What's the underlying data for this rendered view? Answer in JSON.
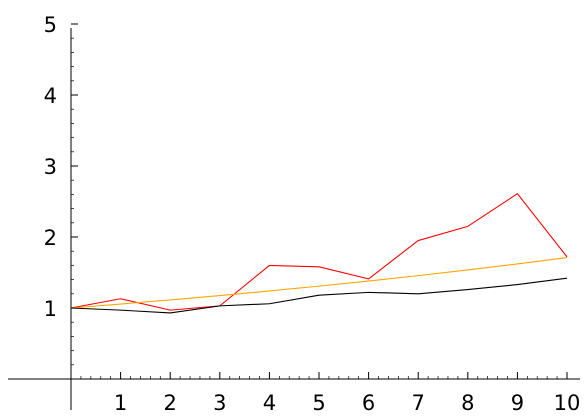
{
  "chart_data": {
    "type": "line",
    "title": "",
    "xlabel": "",
    "ylabel": "",
    "x": [
      0,
      1,
      2,
      3,
      4,
      5,
      6,
      7,
      8,
      9,
      10
    ],
    "xlim": [
      0,
      10
    ],
    "ylim": [
      0,
      5
    ],
    "x_ticks": [
      1,
      2,
      3,
      4,
      5,
      6,
      7,
      8,
      9,
      10
    ],
    "y_ticks": [
      1,
      2,
      3,
      4,
      5
    ],
    "grid": false,
    "legend": "none",
    "series": [
      {
        "color": "#ff0000",
        "values": [
          1.0,
          1.13,
          0.97,
          1.03,
          1.6,
          1.58,
          1.41,
          1.95,
          2.15,
          2.61,
          1.72
        ]
      },
      {
        "color": "#ffa500",
        "values": [
          1.0,
          1.056,
          1.114,
          1.175,
          1.24,
          1.308,
          1.38,
          1.456,
          1.536,
          1.62,
          1.71
        ]
      },
      {
        "color": "#000000",
        "values": [
          1.0,
          0.97,
          0.93,
          1.03,
          1.06,
          1.18,
          1.22,
          1.2,
          1.26,
          1.33,
          1.42
        ]
      }
    ]
  }
}
